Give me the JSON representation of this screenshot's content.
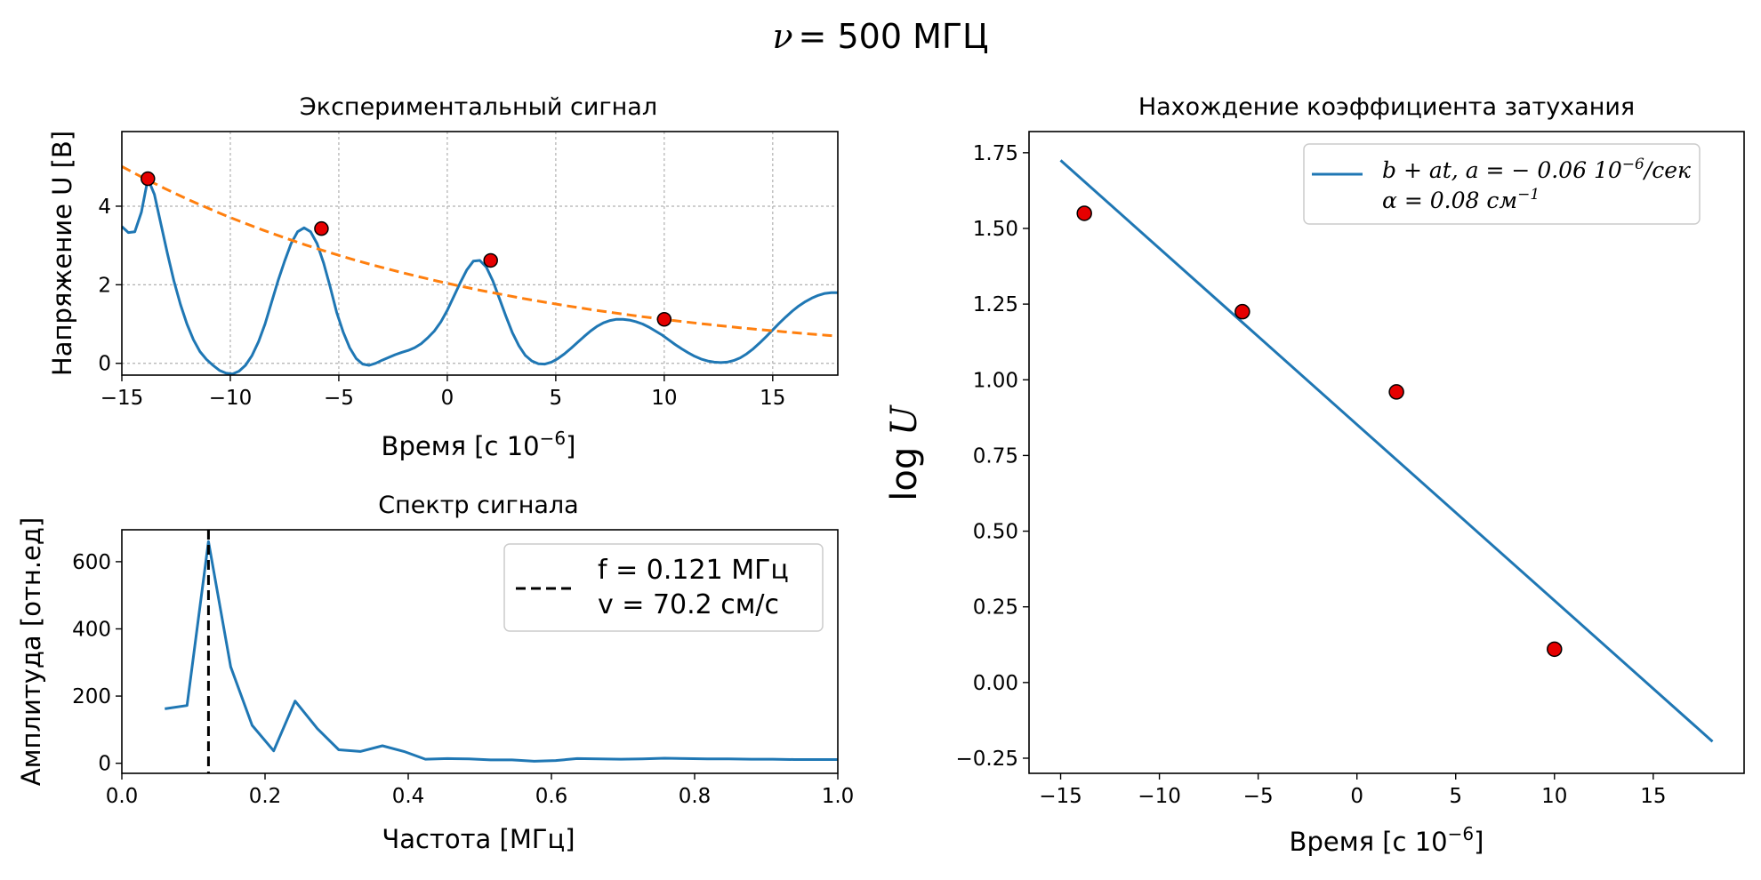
{
  "figure": {
    "suptitle_sym": "ν",
    "suptitle": "= 500 МГЦ"
  },
  "chart_data": [
    {
      "id": "signal",
      "type": "line",
      "title": "Экспериментальный сигнал",
      "xlabel": "Время [с 10",
      "xlabel_sup": "−6",
      "xlabel_end": "]",
      "ylabel": "Напряжение U [В]",
      "xlim": [
        -15,
        18
      ],
      "ylim": [
        -0.3,
        5.9
      ],
      "xticks": [
        -15,
        -10,
        -5,
        0,
        5,
        10,
        15
      ],
      "xtick_labels": [
        "−15",
        "−10",
        "−5",
        "0",
        "5",
        "10",
        "15"
      ],
      "yticks": [
        0,
        2,
        4
      ],
      "ytick_labels": [
        "0",
        "2",
        "4"
      ],
      "grid": true,
      "signal": {
        "x": [
          -15,
          -14.7,
          -14.4,
          -14.1,
          -13.8,
          -13.5,
          -13.2,
          -12.9,
          -12.6,
          -12.3,
          -12.0,
          -11.7,
          -11.4,
          -11.1,
          -10.8,
          -10.5,
          -10.2,
          -9.9,
          -9.6,
          -9.3,
          -9.0,
          -8.7,
          -8.4,
          -8.1,
          -7.8,
          -7.5,
          -7.2,
          -6.9,
          -6.6,
          -6.3,
          -6.0,
          -5.7,
          -5.4,
          -5.1,
          -4.8,
          -4.5,
          -4.2,
          -3.9,
          -3.6,
          -3.3,
          -3.0,
          -2.7,
          -2.4,
          -2.1,
          -1.8,
          -1.5,
          -1.2,
          -0.9,
          -0.6,
          -0.3,
          0.0,
          0.3,
          0.6,
          0.9,
          1.2,
          1.5,
          1.8,
          2.1,
          2.4,
          2.7,
          3.0,
          3.3,
          3.6,
          3.9,
          4.2,
          4.5,
          4.8,
          5.1,
          5.4,
          5.7,
          6.0,
          6.3,
          6.6,
          6.9,
          7.2,
          7.5,
          7.8,
          8.1,
          8.4,
          8.7,
          9.0,
          9.3,
          9.6,
          9.9,
          10.2,
          10.5,
          10.8,
          11.1,
          11.4,
          11.7,
          12.0,
          12.3,
          12.6,
          12.9,
          13.2,
          13.5,
          13.8,
          14.1,
          14.4,
          14.7,
          15.0,
          15.3,
          15.6,
          15.9,
          16.2,
          16.5,
          16.8,
          17.1,
          17.4,
          17.7,
          18.0
        ],
        "y": [
          3.48,
          3.33,
          3.35,
          3.85,
          4.7,
          4.3,
          3.55,
          2.8,
          2.1,
          1.5,
          1.0,
          0.6,
          0.3,
          0.1,
          -0.05,
          -0.18,
          -0.25,
          -0.27,
          -0.2,
          -0.05,
          0.2,
          0.55,
          1.0,
          1.55,
          2.1,
          2.6,
          3.05,
          3.35,
          3.45,
          3.35,
          3.05,
          2.55,
          1.95,
          1.3,
          0.8,
          0.4,
          0.12,
          -0.02,
          -0.05,
          0.0,
          0.08,
          0.15,
          0.22,
          0.28,
          0.33,
          0.4,
          0.5,
          0.65,
          0.82,
          1.05,
          1.35,
          1.7,
          2.05,
          2.38,
          2.6,
          2.62,
          2.45,
          2.1,
          1.65,
          1.2,
          0.78,
          0.45,
          0.2,
          0.06,
          -0.01,
          -0.02,
          0.03,
          0.12,
          0.24,
          0.38,
          0.53,
          0.68,
          0.82,
          0.94,
          1.03,
          1.09,
          1.12,
          1.12,
          1.1,
          1.06,
          1.0,
          0.92,
          0.82,
          0.72,
          0.6,
          0.48,
          0.37,
          0.27,
          0.18,
          0.11,
          0.06,
          0.03,
          0.02,
          0.03,
          0.07,
          0.14,
          0.24,
          0.37,
          0.52,
          0.68,
          0.85,
          1.02,
          1.18,
          1.33,
          1.46,
          1.57,
          1.66,
          1.73,
          1.78,
          1.8,
          1.8
        ],
        "color": "#1f77b4"
      },
      "envelope": {
        "A": 5.65,
        "k": 0.06,
        "t0": -17,
        "color": "#ff7f0e"
      },
      "peaks": {
        "x": [
          -13.8,
          -5.8,
          2.0,
          10.0
        ],
        "y": [
          4.7,
          3.43,
          2.62,
          1.12
        ],
        "color": "#e60000"
      }
    },
    {
      "id": "spectrum",
      "type": "line",
      "title": "Спектр сигнала",
      "xlabel": "Частота [МГц]",
      "ylabel": "Амплитуда [отн.ед]",
      "xlim": [
        0,
        1.0
      ],
      "ylim": [
        -30,
        695
      ],
      "xticks": [
        0,
        0.2,
        0.4,
        0.6,
        0.8,
        1.0
      ],
      "xtick_labels": [
        "0.0",
        "0.2",
        "0.4",
        "0.6",
        "0.8",
        "1.0"
      ],
      "yticks": [
        0,
        200,
        400,
        600
      ],
      "ytick_labels": [
        "0",
        "200",
        "400",
        "600"
      ],
      "grid": false,
      "x": [
        0.06,
        0.091,
        0.121,
        0.152,
        0.182,
        0.212,
        0.242,
        0.273,
        0.303,
        0.333,
        0.364,
        0.394,
        0.424,
        0.455,
        0.485,
        0.515,
        0.545,
        0.576,
        0.606,
        0.636,
        0.667,
        0.697,
        0.727,
        0.758,
        0.788,
        0.818,
        0.848,
        0.879,
        0.909,
        0.939,
        0.97,
        1.0
      ],
      "y": [
        162,
        172,
        660,
        287,
        113,
        37,
        185,
        103,
        40,
        35,
        52,
        35,
        12,
        14,
        13,
        10,
        10,
        6,
        8,
        14,
        13,
        12,
        13,
        15,
        14,
        13,
        13,
        12,
        12,
        11,
        11,
        11
      ],
      "color": "#1f77b4",
      "vline": {
        "x": 0.121,
        "color": "#000000"
      },
      "legend": [
        "f = 0.121 МГц",
        "v = 70.2 см/с"
      ],
      "legend_loc": "upper right"
    },
    {
      "id": "decay",
      "type": "scatter",
      "title": "Нахождение коэффициента затухания",
      "xlabel": "Время [с 10",
      "xlabel_sup": "−6",
      "xlabel_end": "]",
      "ylabel": "log U",
      "xlim": [
        -16.6,
        19.6
      ],
      "ylim": [
        -0.3,
        1.82
      ],
      "xticks": [
        -15,
        -10,
        -5,
        0,
        5,
        10,
        15
      ],
      "xtick_labels": [
        "−15",
        "−10",
        "−5",
        "0",
        "5",
        "10",
        "15"
      ],
      "yticks": [
        -0.25,
        0,
        0.25,
        0.5,
        0.75,
        1.0,
        1.25,
        1.5,
        1.75
      ],
      "ytick_labels": [
        "−0.25",
        "0.00",
        "0.25",
        "0.50",
        "0.75",
        "1.00",
        "1.25",
        "1.50",
        "1.75"
      ],
      "grid": false,
      "points": {
        "x": [
          -13.8,
          -5.8,
          2.0,
          10.0
        ],
        "y": [
          1.55,
          1.225,
          0.96,
          0.11
        ],
        "color": "#e60000"
      },
      "fit": {
        "x": [
          -15,
          18
        ],
        "y": [
          1.725,
          -0.195
        ],
        "color": "#1f77b4"
      },
      "legend": [
        "b + at, a = − 0.06  10",
        "−6",
        "/сек",
        "α = 0.08 см",
        "−1"
      ],
      "legend_loc": "upper right"
    }
  ]
}
